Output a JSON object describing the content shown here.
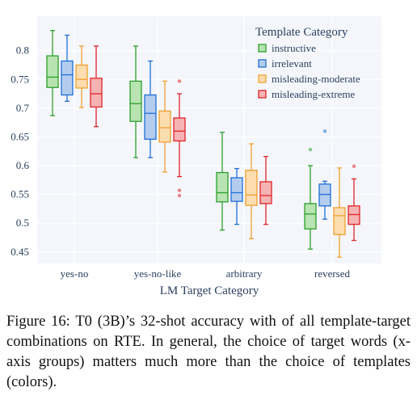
{
  "chart_data": {
    "type": "box",
    "xlabel": "LM Target Category",
    "ylabel": "",
    "ylim": [
      0.43,
      0.86
    ],
    "yticks": [
      0.45,
      0.5,
      0.55,
      0.6,
      0.65,
      0.7,
      0.75,
      0.8
    ],
    "ytick_labels": [
      "0.45",
      "0.5",
      "0.55",
      "0.6",
      "0.65",
      "0.7",
      "0.75",
      "0.8"
    ],
    "grid": true,
    "legend_title": "Template Category",
    "legend_position": "top-right",
    "categories": [
      "yes-no",
      "yes-no-like",
      "arbitrary",
      "reversed"
    ],
    "series": [
      {
        "name": "instructive",
        "color": "#2ca02c",
        "fill": "#b7e4b0",
        "boxes": [
          {
            "min": 0.687,
            "q1": 0.736,
            "median": 0.754,
            "q3": 0.791,
            "max": 0.835,
            "outliers": []
          },
          {
            "min": 0.614,
            "q1": 0.677,
            "median": 0.708,
            "q3": 0.747,
            "max": 0.808,
            "outliers": []
          },
          {
            "min": 0.488,
            "q1": 0.537,
            "median": 0.553,
            "q3": 0.588,
            "max": 0.658,
            "outliers": []
          },
          {
            "min": 0.455,
            "q1": 0.49,
            "median": 0.516,
            "q3": 0.534,
            "max": 0.6,
            "outliers": [
              0.628
            ]
          }
        ]
      },
      {
        "name": "irrelevant",
        "color": "#1f6fd6",
        "fill": "#b4cdef",
        "boxes": [
          {
            "min": 0.712,
            "q1": 0.723,
            "median": 0.758,
            "q3": 0.782,
            "max": 0.827,
            "outliers": []
          },
          {
            "min": 0.614,
            "q1": 0.646,
            "median": 0.691,
            "q3": 0.723,
            "max": 0.782,
            "outliers": []
          },
          {
            "min": 0.498,
            "q1": 0.538,
            "median": 0.553,
            "q3": 0.579,
            "max": 0.595,
            "outliers": []
          },
          {
            "min": 0.507,
            "q1": 0.53,
            "median": 0.55,
            "q3": 0.568,
            "max": 0.573,
            "outliers": [
              0.66
            ]
          }
        ]
      },
      {
        "name": "misleading-moderate",
        "color": "#f0a030",
        "fill": "#fbddb0",
        "boxes": [
          {
            "min": 0.701,
            "q1": 0.735,
            "median": 0.75,
            "q3": 0.775,
            "max": 0.808,
            "outliers": []
          },
          {
            "min": 0.589,
            "q1": 0.641,
            "median": 0.666,
            "q3": 0.695,
            "max": 0.747,
            "outliers": []
          },
          {
            "min": 0.473,
            "q1": 0.531,
            "median": 0.549,
            "q3": 0.592,
            "max": 0.638,
            "outliers": []
          },
          {
            "min": 0.441,
            "q1": 0.48,
            "median": 0.513,
            "q3": 0.527,
            "max": 0.596,
            "outliers": []
          }
        ]
      },
      {
        "name": "misleading-extreme",
        "color": "#e0242a",
        "fill": "#f6b3b3",
        "boxes": [
          {
            "min": 0.668,
            "q1": 0.702,
            "median": 0.725,
            "q3": 0.752,
            "max": 0.808,
            "outliers": []
          },
          {
            "min": 0.581,
            "q1": 0.643,
            "median": 0.66,
            "q3": 0.683,
            "max": 0.725,
            "outliers": [
              0.747,
              0.557,
              0.548
            ]
          },
          {
            "min": 0.498,
            "q1": 0.534,
            "median": 0.548,
            "q3": 0.572,
            "max": 0.616,
            "outliers": []
          },
          {
            "min": 0.47,
            "q1": 0.498,
            "median": 0.515,
            "q3": 0.53,
            "max": 0.577,
            "outliers": [
              0.599
            ]
          }
        ]
      }
    ]
  },
  "caption": "Figure 16: T0 (3B)’s 32-shot accuracy with of all template-target combinations on RTE. In general, the choice of target words (x-axis groups) matters much more than the choice of templates (colors)."
}
